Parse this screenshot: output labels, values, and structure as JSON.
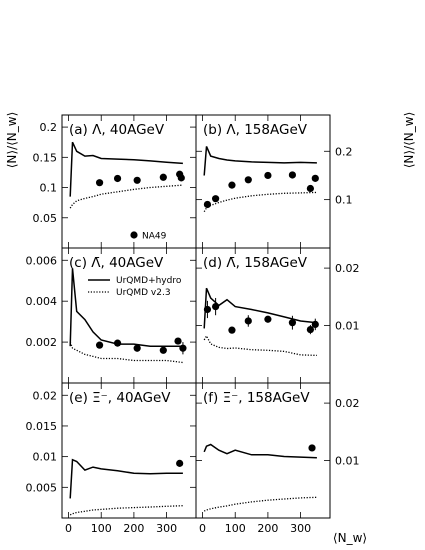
{
  "figure": {
    "ylabel_left": "⟨N⟩/⟨N_w⟩",
    "ylabel_right": "⟨N⟩/⟨N_w⟩",
    "xlabel": "⟨N_w⟩",
    "legend": {
      "marker_label": "NA49",
      "solid_label": "UrQMD+hydro",
      "dotted_label": "UrQMD v2.3"
    }
  },
  "chart_data": [
    {
      "type": "line",
      "panel": "a",
      "label": "(a)  Λ, 40AGeV",
      "xlim": [
        -20,
        390
      ],
      "ylim": [
        0,
        0.22
      ],
      "xticks": [
        0,
        100,
        200,
        300
      ],
      "yticks": [
        0.05,
        0.1,
        0.15,
        0.2
      ],
      "ytick_labels": [
        "0.05",
        "0.1",
        "0.15",
        "0.2"
      ],
      "yaxis_side": "left",
      "series": [
        {
          "name": "UrQMD+hydro",
          "style": "solid",
          "x": [
            5,
            12,
            25,
            50,
            75,
            100,
            150,
            200,
            250,
            300,
            350
          ],
          "y": [
            0.085,
            0.175,
            0.16,
            0.152,
            0.153,
            0.148,
            0.147,
            0.146,
            0.144,
            0.142,
            0.14
          ]
        },
        {
          "name": "UrQMD v2.3",
          "style": "dotted",
          "x": [
            5,
            12,
            25,
            50,
            75,
            100,
            150,
            200,
            250,
            300,
            350
          ],
          "y": [
            0.066,
            0.072,
            0.078,
            0.082,
            0.085,
            0.089,
            0.093,
            0.097,
            0.1,
            0.102,
            0.104
          ]
        },
        {
          "name": "NA49",
          "style": "marker",
          "x": [
            95,
            150,
            210,
            290,
            340,
            345
          ],
          "y": [
            0.108,
            0.115,
            0.112,
            0.117,
            0.122,
            0.116
          ],
          "yerr": [
            0,
            0,
            0,
            0,
            0,
            0
          ]
        }
      ]
    },
    {
      "type": "line",
      "panel": "b",
      "label": "(b)  Λ, 158AGeV",
      "xlim": [
        -20,
        390
      ],
      "ylim": [
        0,
        0.275
      ],
      "xticks": [
        0,
        100,
        200,
        300
      ],
      "yticks": [
        0.1,
        0.2
      ],
      "ytick_labels": [
        "0.1",
        "0.2"
      ],
      "yaxis_side": "right",
      "series": [
        {
          "name": "UrQMD+hydro",
          "style": "solid",
          "x": [
            5,
            12,
            25,
            50,
            75,
            100,
            150,
            200,
            250,
            300,
            350
          ],
          "y": [
            0.15,
            0.21,
            0.19,
            0.185,
            0.182,
            0.18,
            0.178,
            0.177,
            0.176,
            0.177,
            0.176
          ]
        },
        {
          "name": "UrQMD v2.3",
          "style": "dotted",
          "x": [
            5,
            12,
            25,
            50,
            75,
            100,
            150,
            200,
            250,
            300,
            350
          ],
          "y": [
            0.075,
            0.083,
            0.088,
            0.094,
            0.099,
            0.103,
            0.108,
            0.111,
            0.113,
            0.114,
            0.115
          ]
        },
        {
          "name": "NA49",
          "style": "marker",
          "x": [
            15,
            40,
            90,
            140,
            200,
            275,
            330,
            345
          ],
          "y": [
            0.09,
            0.102,
            0.13,
            0.141,
            0.15,
            0.151,
            0.123,
            0.144
          ],
          "yerr": [
            0,
            0,
            0,
            0,
            0,
            0,
            0,
            0
          ]
        }
      ]
    },
    {
      "type": "line",
      "panel": "c",
      "label": "(c)  Λ̄, 40AGeV",
      "xlim": [
        -20,
        390
      ],
      "ylim": [
        0,
        0.0066
      ],
      "xticks": [
        0,
        100,
        200,
        300
      ],
      "yticks": [
        0.002,
        0.004,
        0.006
      ],
      "ytick_labels": [
        "0.002",
        "0.004",
        "0.006"
      ],
      "yaxis_side": "left",
      "series": [
        {
          "name": "UrQMD+hydro",
          "style": "solid",
          "x": [
            5,
            12,
            25,
            50,
            75,
            100,
            150,
            200,
            250,
            300,
            350
          ],
          "y": [
            0.0018,
            0.0056,
            0.0035,
            0.0031,
            0.0025,
            0.0021,
            0.0019,
            0.0019,
            0.0018,
            0.0018,
            0.0018
          ]
        },
        {
          "name": "UrQMD v2.3",
          "style": "dotted",
          "x": [
            5,
            12,
            25,
            50,
            75,
            100,
            150,
            200,
            250,
            300,
            350
          ],
          "y": [
            0.002,
            0.0017,
            0.0016,
            0.0014,
            0.0013,
            0.0012,
            0.0012,
            0.0011,
            0.0011,
            0.0011,
            0.001
          ]
        },
        {
          "name": "NA49",
          "style": "marker",
          "x": [
            95,
            150,
            210,
            290,
            335,
            350
          ],
          "y": [
            0.00185,
            0.00195,
            0.0017,
            0.0016,
            0.00205,
            0.0017
          ],
          "yerr": [
            0,
            0,
            0,
            0,
            0,
            0.0003
          ]
        }
      ]
    },
    {
      "type": "line",
      "panel": "d",
      "label": "(d)  Λ̄, 158AGeV",
      "xlim": [
        -20,
        390
      ],
      "ylim": [
        0,
        0.0235
      ],
      "xticks": [
        0,
        100,
        200,
        300
      ],
      "yticks": [
        0.01,
        0.02
      ],
      "ytick_labels": [
        "0.01",
        "0.02"
      ],
      "yaxis_side": "right",
      "series": [
        {
          "name": "UrQMD+hydro",
          "style": "solid",
          "x": [
            5,
            12,
            25,
            50,
            75,
            100,
            150,
            200,
            250,
            300,
            350
          ],
          "y": [
            0.0095,
            0.0165,
            0.0148,
            0.0135,
            0.0145,
            0.0133,
            0.0128,
            0.0122,
            0.0115,
            0.0108,
            0.0105
          ]
        },
        {
          "name": "UrQMD v2.3",
          "style": "dotted",
          "x": [
            5,
            12,
            25,
            50,
            75,
            100,
            150,
            200,
            250,
            300,
            350
          ],
          "y": [
            0.0075,
            0.0082,
            0.0068,
            0.0062,
            0.006,
            0.0061,
            0.0058,
            0.0057,
            0.0055,
            0.0049,
            0.0048
          ]
        },
        {
          "name": "NA49",
          "style": "marker",
          "x": [
            15,
            40,
            90,
            140,
            200,
            275,
            330,
            345
          ],
          "y": [
            0.0128,
            0.0133,
            0.0092,
            0.0108,
            0.0111,
            0.0105,
            0.0093,
            0.0102
          ],
          "yerr": [
            0.0015,
            0.0015,
            0,
            0.001,
            0.0005,
            0.0012,
            0.0008,
            0.001
          ]
        }
      ]
    },
    {
      "type": "line",
      "panel": "e",
      "label": "(e)  Ξ⁻, 40AGeV",
      "xlim": [
        -20,
        390
      ],
      "ylim": [
        0,
        0.022
      ],
      "xticks": [
        0,
        100,
        200,
        300
      ],
      "yticks": [
        0.005,
        0.01,
        0.015,
        0.02
      ],
      "ytick_labels": [
        "0.005",
        "0.01",
        "0.015",
        "0.02"
      ],
      "yaxis_side": "left",
      "series": [
        {
          "name": "UrQMD+hydro",
          "style": "solid",
          "x": [
            5,
            12,
            25,
            50,
            75,
            100,
            150,
            200,
            250,
            300,
            350
          ],
          "y": [
            0.0032,
            0.0095,
            0.0092,
            0.0078,
            0.0083,
            0.008,
            0.0077,
            0.0073,
            0.0072,
            0.0073,
            0.0073
          ]
        },
        {
          "name": "UrQMD v2.3",
          "style": "dotted",
          "x": [
            5,
            12,
            25,
            50,
            75,
            100,
            150,
            200,
            250,
            300,
            350
          ],
          "y": [
            0.0005,
            0.0007,
            0.0009,
            0.0011,
            0.0013,
            0.0014,
            0.0016,
            0.0017,
            0.0018,
            0.0019,
            0.002
          ]
        },
        {
          "name": "NA49",
          "style": "marker",
          "x": [
            340
          ],
          "y": [
            0.0089
          ],
          "yerr": [
            0.0005
          ]
        }
      ]
    },
    {
      "type": "line",
      "panel": "f",
      "label": "(f)  Ξ⁻, 158AGeV",
      "xlim": [
        -20,
        390
      ],
      "ylim": [
        0,
        0.0235
      ],
      "xticks": [
        0,
        100,
        200,
        300
      ],
      "yticks": [
        0.01,
        0.02
      ],
      "ytick_labels": [
        "0.01",
        "0.02"
      ],
      "yaxis_side": "right",
      "series": [
        {
          "name": "UrQMD+hydro",
          "style": "solid",
          "x": [
            5,
            12,
            25,
            50,
            75,
            100,
            150,
            200,
            250,
            300,
            350
          ],
          "y": [
            0.0115,
            0.0125,
            0.0128,
            0.0118,
            0.0112,
            0.0118,
            0.011,
            0.011,
            0.0107,
            0.0106,
            0.0105
          ]
        },
        {
          "name": "UrQMD v2.3",
          "style": "dotted",
          "x": [
            5,
            12,
            25,
            50,
            75,
            100,
            150,
            200,
            250,
            300,
            350
          ],
          "y": [
            0.0012,
            0.0014,
            0.0016,
            0.0019,
            0.0021,
            0.0024,
            0.0028,
            0.0031,
            0.0033,
            0.0035,
            0.0036
          ]
        },
        {
          "name": "NA49",
          "style": "marker",
          "x": [
            335
          ],
          "y": [
            0.0122
          ],
          "yerr": [
            0
          ]
        }
      ]
    }
  ]
}
